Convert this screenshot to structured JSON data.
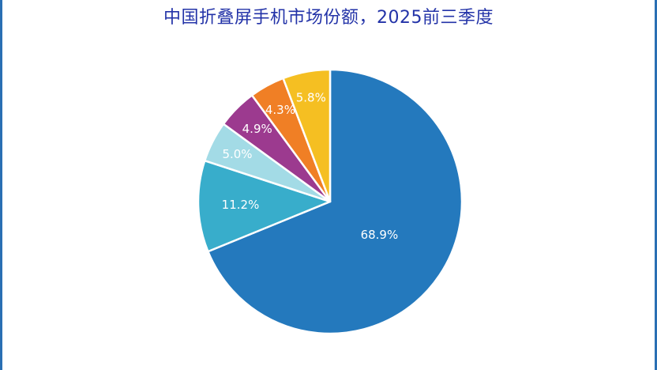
{
  "chart_data": {
    "type": "pie",
    "title": "中国折叠屏手机市场份额，2025前三季度",
    "slices": [
      {
        "label": "68.9%",
        "value": 68.9,
        "color": "#2479bd"
      },
      {
        "label": "11.2%",
        "value": 11.2,
        "color": "#38adcb"
      },
      {
        "label": "5.0%",
        "value": 5.0,
        "color": "#a3dbe6"
      },
      {
        "label": "4.9%",
        "value": 4.9,
        "color": "#9c3a8f"
      },
      {
        "label": "4.3%",
        "value": 4.3,
        "color": "#f07f25"
      },
      {
        "label": "5.8%",
        "value": 5.8,
        "color": "#f5bf22"
      }
    ],
    "start": "12 o'clock",
    "direction": "clockwise"
  },
  "colors": {
    "title": "#2333a8",
    "border": "#2a6fb3",
    "slice_stroke": "#ffffff",
    "label": "#ffffff"
  }
}
